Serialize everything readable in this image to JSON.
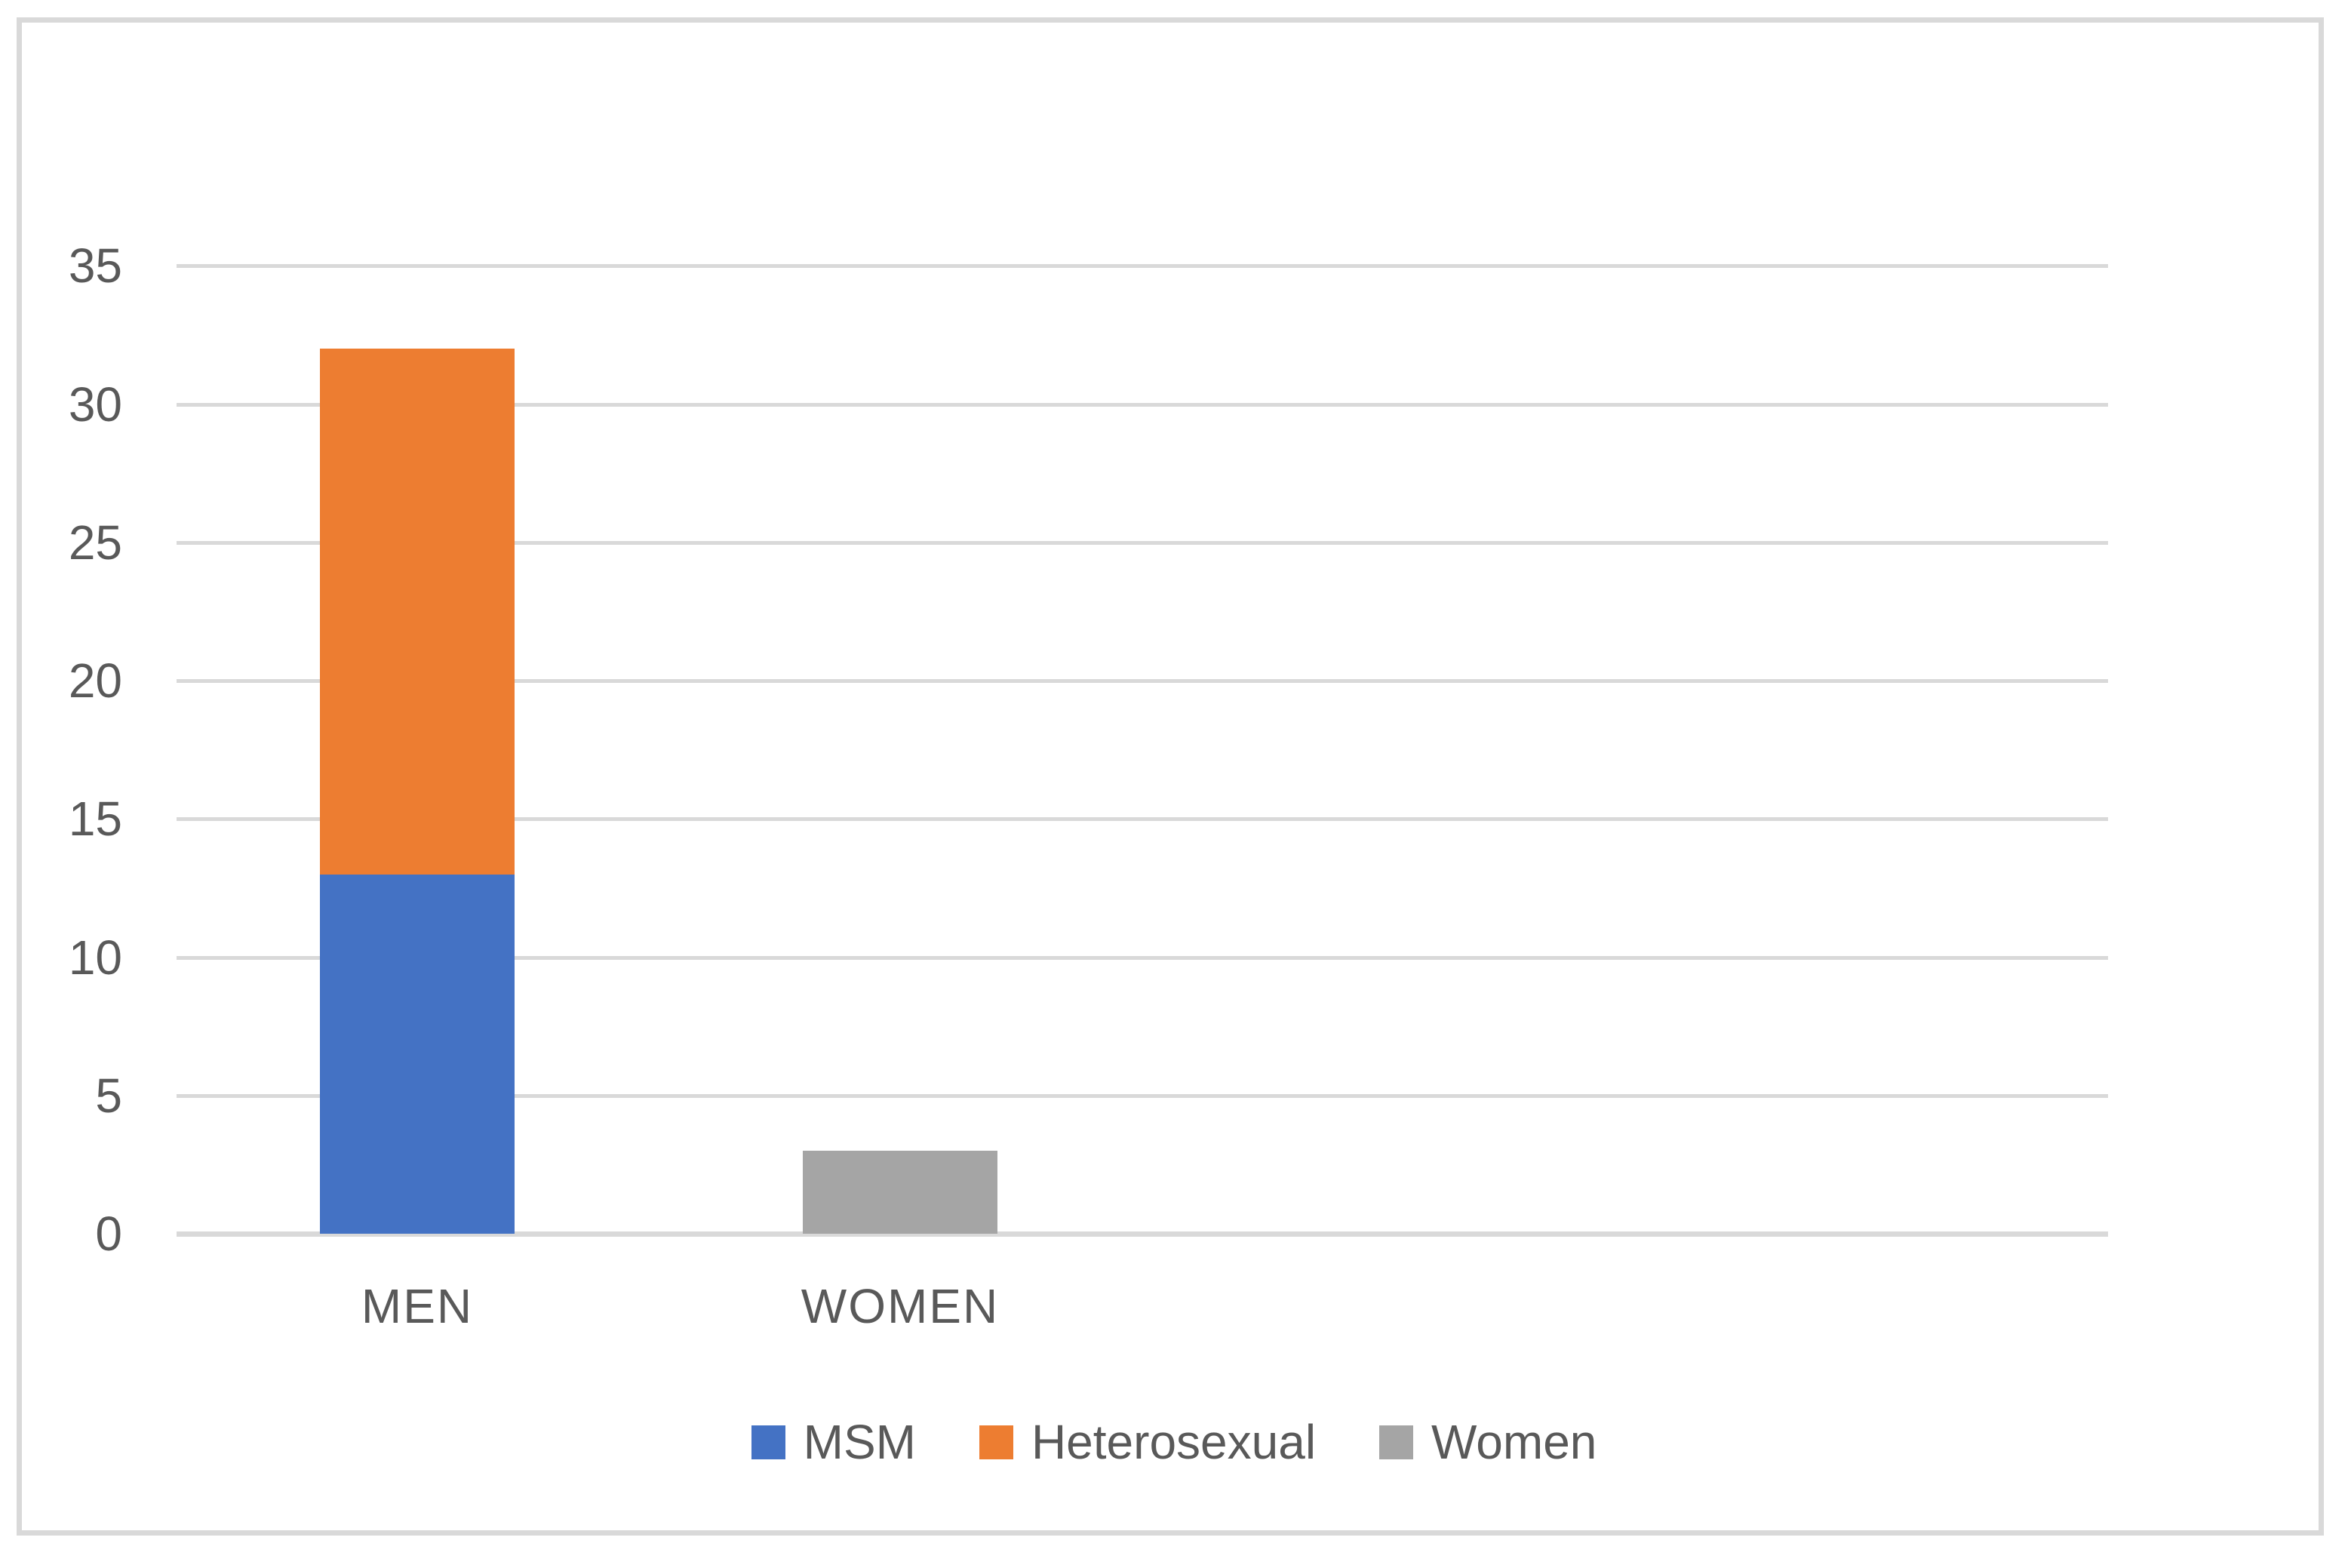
{
  "chart_data": {
    "type": "bar",
    "stacked": true,
    "title": "",
    "categories": [
      "MEN",
      "WOMEN"
    ],
    "series": [
      {
        "name": "MSM",
        "color": "#4472C4",
        "values": [
          13,
          0
        ]
      },
      {
        "name": "Heterosexual",
        "color": "#ED7D31",
        "values": [
          19,
          0
        ]
      },
      {
        "name": "Women",
        "color": "#A5A5A5",
        "values": [
          0,
          3
        ]
      }
    ],
    "stack_totals": [
      32,
      3
    ],
    "ylim": [
      0,
      35
    ],
    "y_ticks": [
      0,
      5,
      10,
      15,
      20,
      25,
      30,
      35
    ],
    "y_tick_labels": [
      "0",
      "5",
      "10",
      "15",
      "20",
      "25",
      "30",
      "35"
    ],
    "grid": true,
    "legend_position": "bottom",
    "legend_labels": [
      "MSM",
      "Heterosexual",
      "Women"
    ],
    "colors": {
      "axis_text": "#595959",
      "gridline": "#D9D9D9",
      "axis_line": "#D9D9D9",
      "frame_border": "#D9D9D9",
      "background": "#FFFFFF"
    }
  }
}
